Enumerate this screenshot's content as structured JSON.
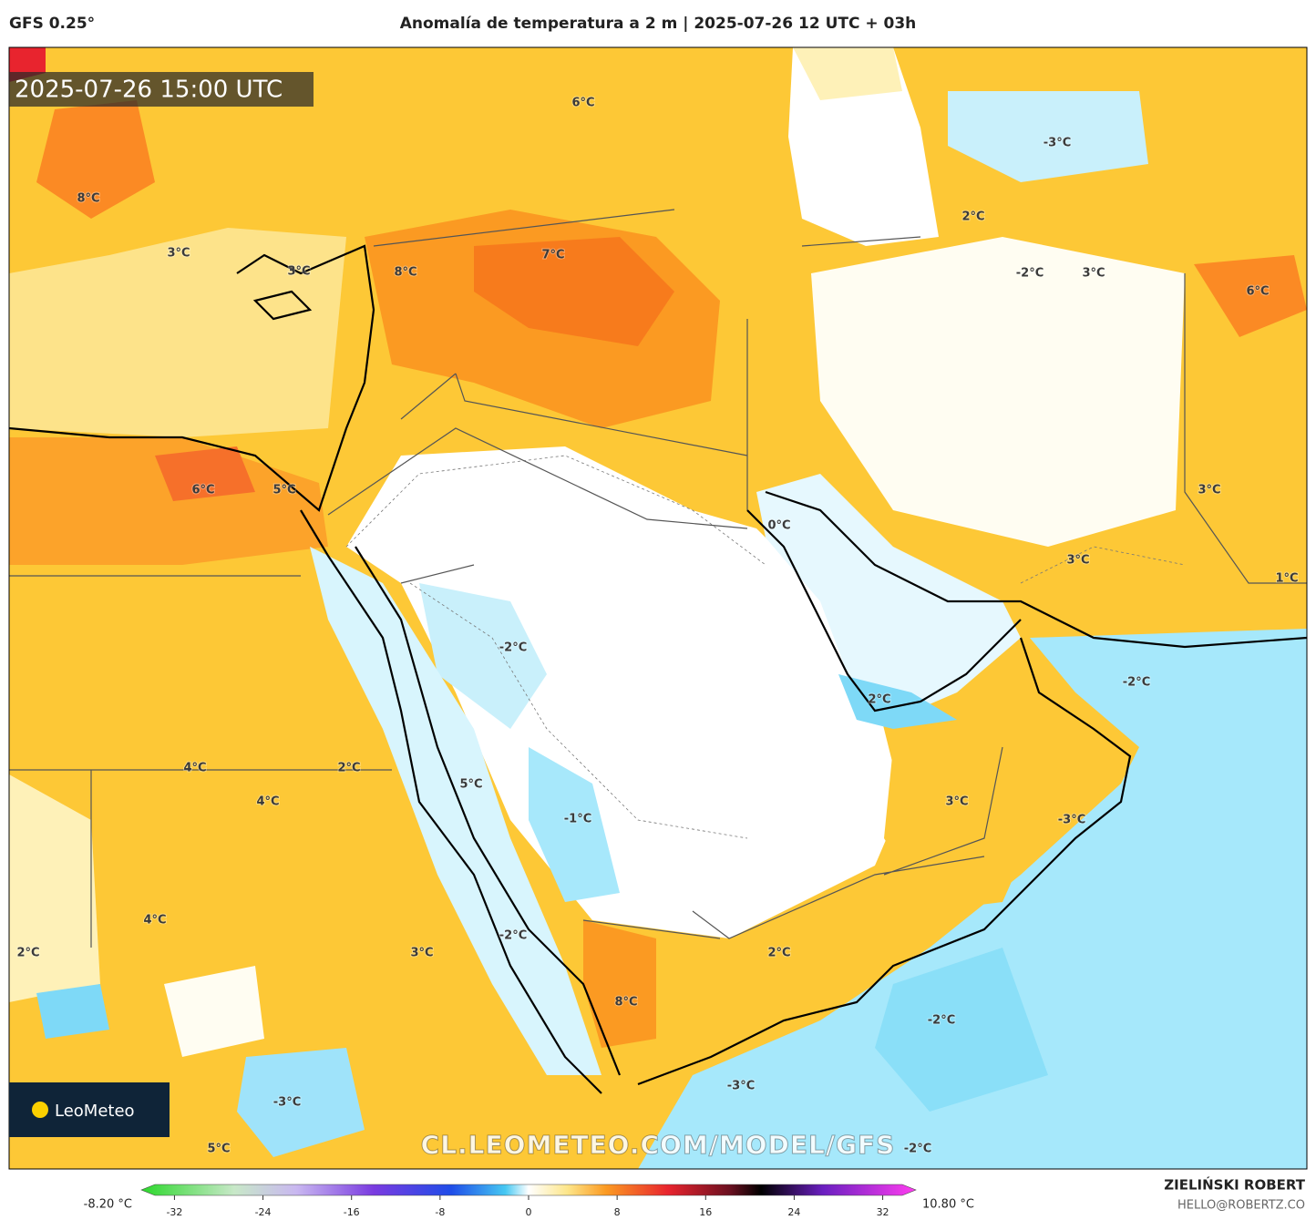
{
  "header": {
    "model": "GFS 0.25°",
    "title": "Anomalía de temperatura a 2 m | 2025-07-26 12 UTC + 03h"
  },
  "map": {
    "timestamp": "2025-07-26 15:00 UTC",
    "watermark": "CL.LEOMETEO.COM/MODEL/GFS",
    "logo": "LeoMeteo",
    "labels": [
      "6°C",
      "-3°C",
      "8°C",
      "2°C",
      "3°C",
      "3°C",
      "8°C",
      "7°C",
      "-2°C",
      "3°C",
      "6°C",
      "3°C",
      "6°C",
      "5°C",
      "0°C",
      "3°C",
      "1°C",
      "-2°C",
      "-2°C",
      "2°C",
      "2°C",
      "4°C",
      "5°C",
      "4°C",
      "3°C",
      "-3°C",
      "-1°C",
      "4°C",
      "-2°C",
      "2°C",
      "3°C",
      "2°C",
      "8°C",
      "-2°C",
      "-3°C",
      "-3°C",
      "5°C",
      "-2°C"
    ]
  },
  "colorbar": {
    "min_label": "-8.20 °C",
    "max_label": "10.80 °C",
    "lim": [
      -35,
      35
    ],
    "ticks": [
      -32,
      -24,
      -16,
      -8,
      0,
      8,
      16,
      24,
      32
    ]
  },
  "footer": {
    "author": "ZIELIŃSKI ROBERT",
    "contact": "HELLO@ROBERTZ.CO"
  }
}
